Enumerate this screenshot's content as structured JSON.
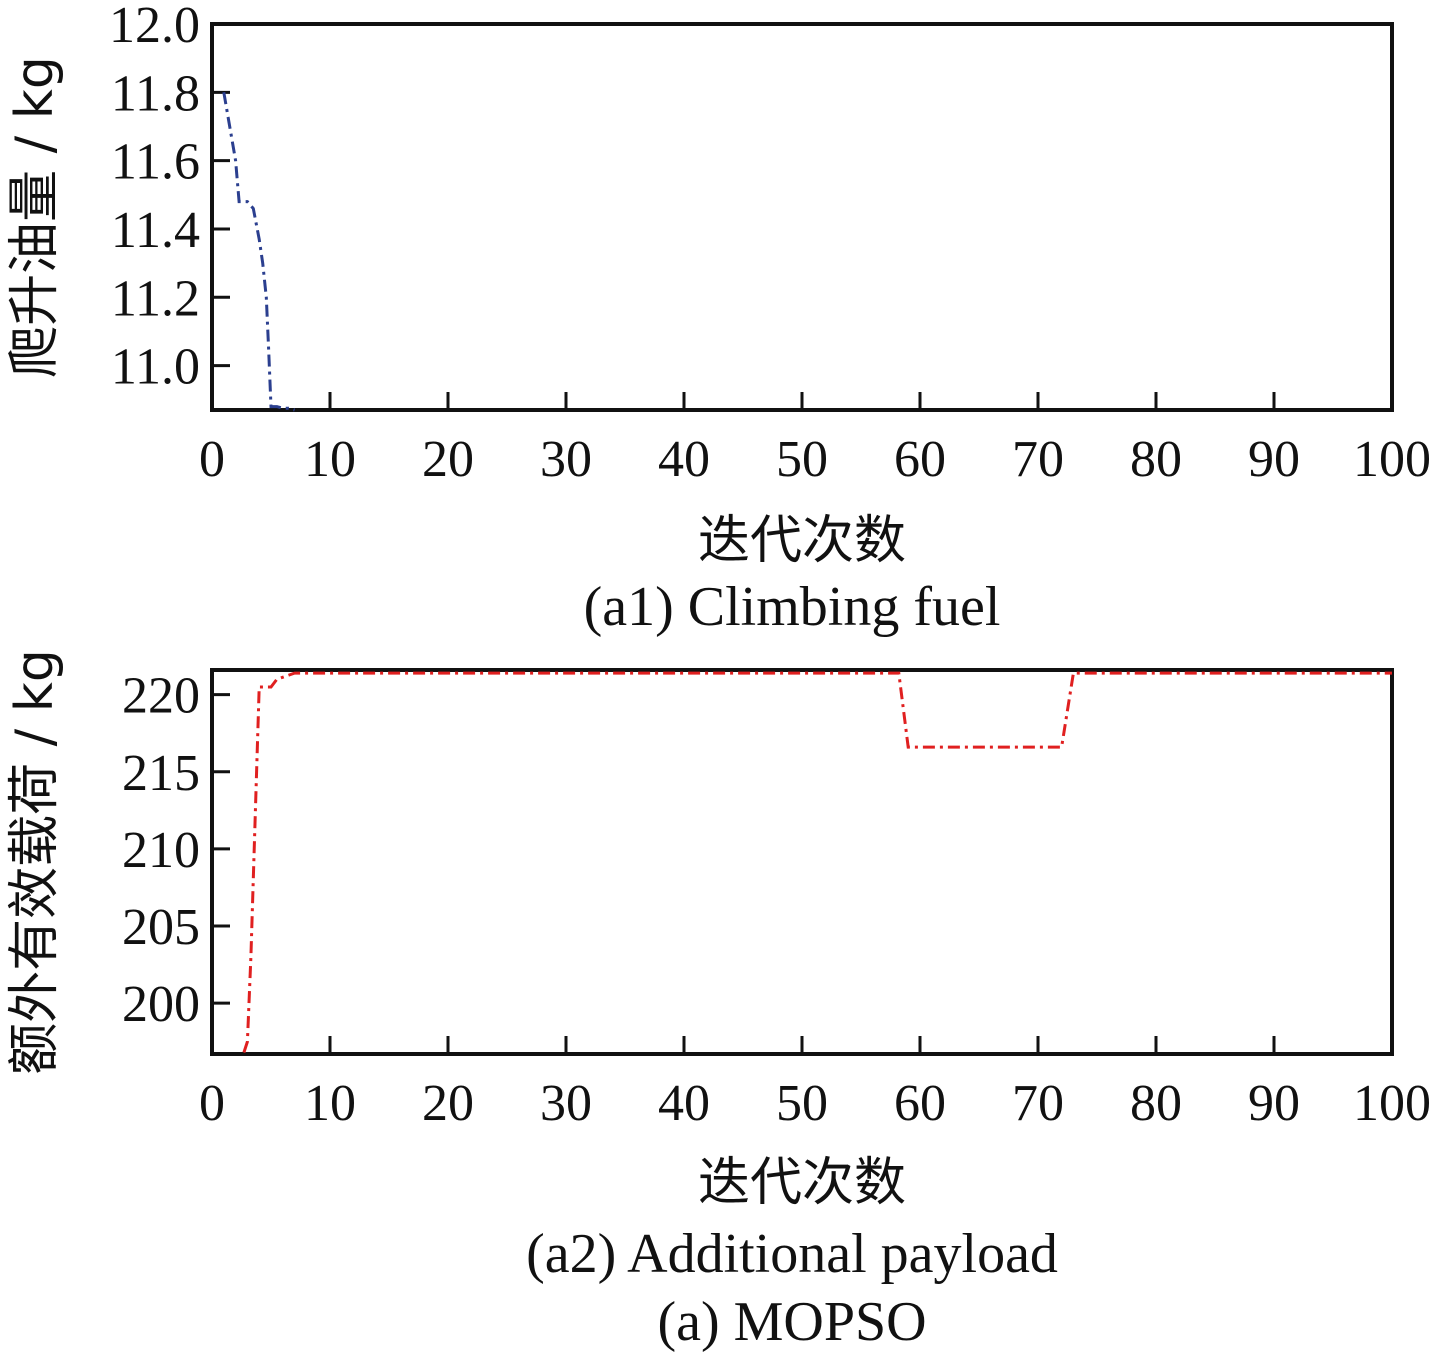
{
  "figure_caption": "(a) MOPSO",
  "chart_data": [
    {
      "type": "line",
      "caption": "(a1) Climbing fuel",
      "xlabel": "迭代次数",
      "ylabel": "爬升油量 / kg",
      "xlim": [
        0,
        100
      ],
      "ylim": [
        10.87,
        12.0
      ],
      "xticks": [
        "0",
        "10",
        "20",
        "30",
        "40",
        "50",
        "60",
        "70",
        "80",
        "90",
        "100"
      ],
      "xtick_values": [
        0,
        10,
        20,
        30,
        40,
        50,
        60,
        70,
        80,
        90,
        100
      ],
      "yticks": [
        "11.0",
        "11.2",
        "11.4",
        "11.6",
        "11.8",
        "12.0"
      ],
      "ytick_values": [
        11.0,
        11.2,
        11.4,
        11.6,
        11.8,
        12.0
      ],
      "grid": false,
      "series": [
        {
          "color": "#2b3f8f",
          "style": "dash-dot",
          "x": [
            1,
            2,
            2.3,
            3,
            3.5,
            4,
            4.3,
            4.6,
            4.8,
            5,
            5.5,
            6,
            6.5,
            7
          ],
          "y": [
            11.8,
            11.6,
            11.48,
            11.48,
            11.46,
            11.37,
            11.3,
            11.2,
            11.05,
            10.88,
            10.88,
            10.875,
            10.875,
            10.87
          ]
        }
      ]
    },
    {
      "type": "line",
      "caption": "(a2) Additional payload",
      "xlabel": "迭代次数",
      "ylabel": "额外有效载荷 / kg",
      "xlim": [
        0,
        100
      ],
      "ylim": [
        196.7,
        221.6
      ],
      "xticks": [
        "0",
        "10",
        "20",
        "30",
        "40",
        "50",
        "60",
        "70",
        "80",
        "90",
        "100"
      ],
      "xtick_values": [
        0,
        10,
        20,
        30,
        40,
        50,
        60,
        70,
        80,
        90,
        100
      ],
      "yticks": [
        "200",
        "205",
        "210",
        "215",
        "220"
      ],
      "ytick_values": [
        200,
        205,
        210,
        215,
        220
      ],
      "grid": false,
      "series": [
        {
          "color": "#e02020",
          "style": "dash-dot",
          "x": [
            2.7,
            3,
            3.3,
            4,
            5,
            5.5,
            7,
            58.2,
            59,
            72,
            73,
            100
          ],
          "y": [
            196.8,
            197.5,
            203,
            220.5,
            220.5,
            221,
            221.4,
            221.4,
            216.6,
            216.6,
            221.4,
            221.4
          ]
        }
      ]
    }
  ]
}
